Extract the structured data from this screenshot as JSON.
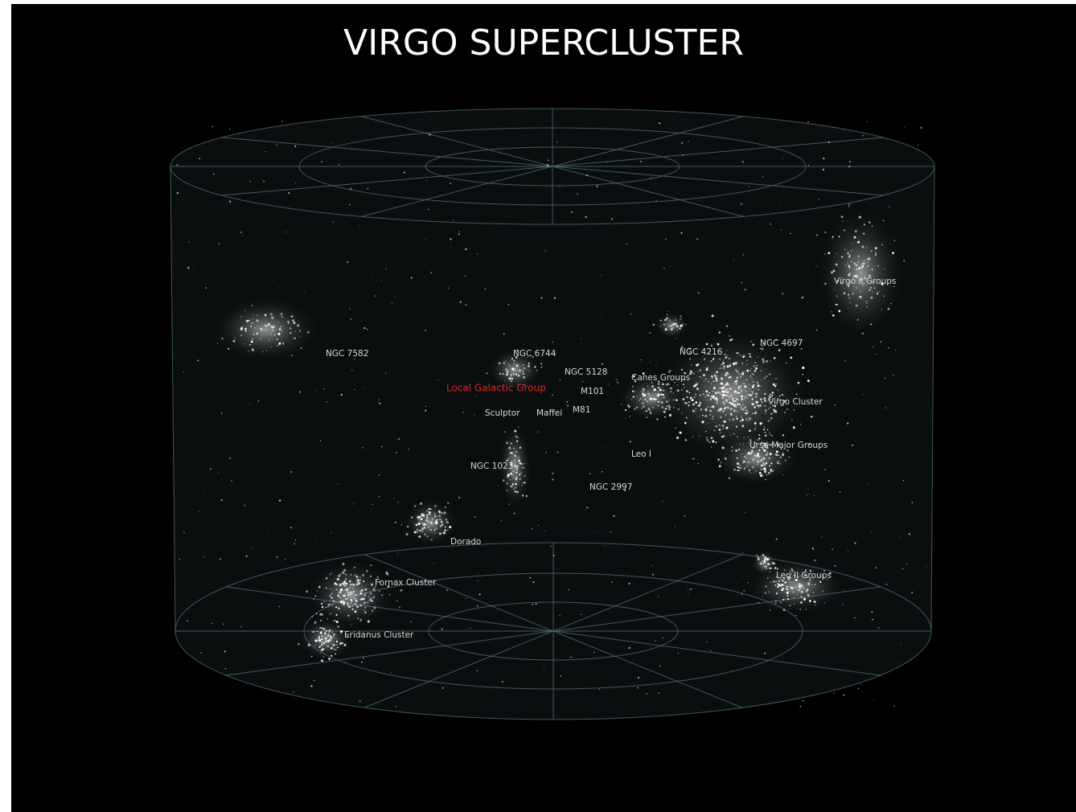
{
  "title": "VIRGO SUPERCLUSTER",
  "labels": [
    "NGC 7582",
    "NGC 6744",
    "NGC 5128",
    "Local Galactic Group",
    "M101",
    "Sculptor",
    "Maffei",
    "M81",
    "NGC 1023",
    "NGC 2997",
    "Leo I",
    "Dorado",
    "Fornax Cluster",
    "Eridanus Cluster",
    "Canes Groups",
    "NGC 4216",
    "NGC 4697",
    "Virgo Cluster",
    "Ursa Major Groups",
    "Virgo II Groups",
    "Leo II Groups"
  ]
}
